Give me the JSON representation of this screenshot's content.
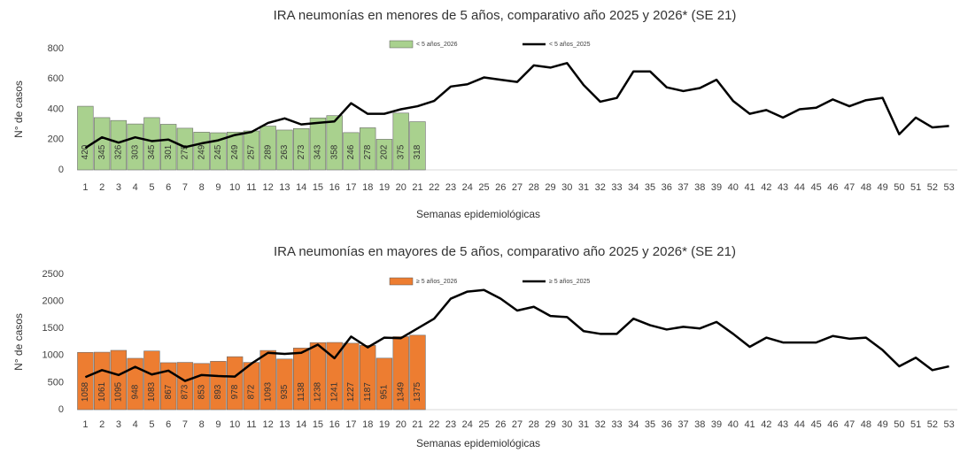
{
  "chart_data": [
    {
      "type": "bar",
      "title": "IRA neumonías en menores de 5 años, comparativo año 2025 y 2026* (SE 21)",
      "y_label": "N° de casos",
      "x_label": "Semanas epidemiológicas",
      "categories": [
        "1",
        "2",
        "3",
        "4",
        "5",
        "6",
        "7",
        "8",
        "9",
        "10",
        "11",
        "12",
        "13",
        "14",
        "15",
        "16",
        "17",
        "18",
        "19",
        "20",
        "21",
        "22",
        "23",
        "24",
        "25",
        "26",
        "27",
        "28",
        "29",
        "30",
        "31",
        "32",
        "33",
        "34",
        "35",
        "36",
        "37",
        "38",
        "39",
        "40",
        "41",
        "42",
        "43",
        "44",
        "45",
        "46",
        "47",
        "48",
        "49",
        "50",
        "51",
        "52",
        "53"
      ],
      "ylim": [
        0,
        800
      ],
      "yticks": [
        0,
        200,
        400,
        600,
        800
      ],
      "series": [
        {
          "name": "< 5 años_2026",
          "type": "bar",
          "color": "#a9d18e",
          "values": [
            420,
            345,
            326,
            303,
            345,
            301,
            275,
            249,
            245,
            249,
            257,
            289,
            263,
            273,
            343,
            358,
            246,
            278,
            202,
            375,
            318,
            null,
            null,
            null,
            null,
            null,
            null,
            null,
            null,
            null,
            null,
            null,
            null,
            null,
            null,
            null,
            null,
            null,
            null,
            null,
            null,
            null,
            null,
            null,
            null,
            null,
            null,
            null,
            null,
            null,
            null,
            null,
            null
          ]
        },
        {
          "name": "< 5 años_2025",
          "type": "line",
          "color": "#000000",
          "values": [
            145,
            215,
            180,
            215,
            190,
            200,
            150,
            175,
            195,
            230,
            250,
            310,
            340,
            300,
            310,
            320,
            440,
            370,
            370,
            400,
            420,
            455,
            550,
            565,
            610,
            595,
            580,
            690,
            675,
            705,
            560,
            450,
            475,
            650,
            650,
            545,
            520,
            540,
            595,
            455,
            370,
            395,
            345,
            400,
            410,
            465,
            420,
            460,
            475,
            235,
            345,
            280,
            290
          ]
        }
      ]
    },
    {
      "type": "bar",
      "title": "IRA neumonías en mayores de 5 años, comparativo año 2025 y 2026* (SE 21)",
      "y_label": "N° de casos",
      "x_label": "Semanas epidemiológicas",
      "categories": [
        "1",
        "2",
        "3",
        "4",
        "5",
        "6",
        "7",
        "8",
        "9",
        "10",
        "11",
        "12",
        "13",
        "14",
        "15",
        "16",
        "17",
        "18",
        "19",
        "20",
        "21",
        "22",
        "23",
        "24",
        "25",
        "26",
        "27",
        "28",
        "29",
        "30",
        "31",
        "32",
        "33",
        "34",
        "35",
        "36",
        "37",
        "38",
        "39",
        "40",
        "41",
        "42",
        "43",
        "44",
        "45",
        "46",
        "47",
        "48",
        "49",
        "50",
        "51",
        "52",
        "53"
      ],
      "ylim": [
        0,
        2500
      ],
      "yticks": [
        0,
        500,
        1000,
        1500,
        2000,
        2500
      ],
      "series": [
        {
          "name": "≥ 5 años_2026",
          "type": "bar",
          "color": "#ed7d31",
          "values": [
            1058,
            1061,
            1095,
            948,
            1083,
            867,
            873,
            853,
            893,
            978,
            872,
            1093,
            935,
            1138,
            1238,
            1241,
            1227,
            1187,
            951,
            1349,
            1375,
            null,
            null,
            null,
            null,
            null,
            null,
            null,
            null,
            null,
            null,
            null,
            null,
            null,
            null,
            null,
            null,
            null,
            null,
            null,
            null,
            null,
            null,
            null,
            null,
            null,
            null,
            null,
            null,
            null,
            null,
            null,
            null
          ]
        },
        {
          "name": "≥ 5 años_2025",
          "type": "line",
          "color": "#000000",
          "values": [
            600,
            730,
            640,
            790,
            650,
            720,
            530,
            640,
            620,
            610,
            850,
            1050,
            1030,
            1050,
            1200,
            950,
            1350,
            1150,
            1330,
            1320,
            1500,
            1680,
            2050,
            2180,
            2210,
            2050,
            1830,
            1900,
            1730,
            1710,
            1450,
            1400,
            1400,
            1680,
            1560,
            1480,
            1530,
            1500,
            1620,
            1400,
            1160,
            1330,
            1240,
            1240,
            1240,
            1360,
            1310,
            1330,
            1100,
            800,
            960,
            730,
            800
          ]
        }
      ]
    }
  ]
}
